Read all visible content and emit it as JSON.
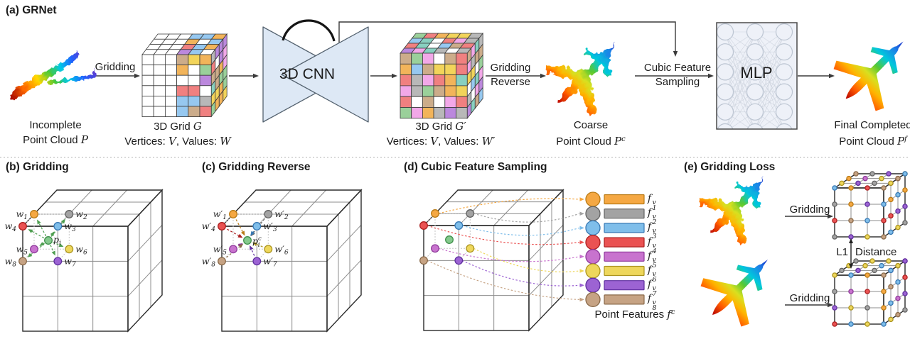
{
  "colors": {
    "text": "#1b1b1b",
    "arrow": "#3a3a3a",
    "divider": "#b5b5b5",
    "cnn_fill": "#dde8f5",
    "cnn_stroke": "#54626f",
    "arc": "#151515",
    "mlp_box_fill": "#eef1f8",
    "mlp_box_stroke": "#4a4a4a",
    "mlp_node_stroke": "#bcc5d2",
    "mlp_link_stroke": "#cfd5df",
    "wire_outer": "#2b2b2b",
    "wire_inner": "#8c8c8c",
    "wire_light": "#c6c6c6",
    "green_arrow": "#4e9e50",
    "cell_stroke": "#3a3a3a",
    "palette": [
      "#f08080",
      "#9ad09a",
      "#b8b8b8",
      "#f2d45a",
      "#bb88dd",
      "#96c8f0",
      "#f2b45a",
      "#f2a8e8",
      "#ccac8a",
      "#ffffff",
      "#88d0c0"
    ],
    "vertex": [
      {
        "fill": "#f5a843",
        "stroke": "#b97a14"
      },
      {
        "fill": "#a3a3a3",
        "stroke": "#636363"
      },
      {
        "fill": "#7fbeea",
        "stroke": "#3879b4"
      },
      {
        "fill": "#ea5252",
        "stroke": "#ab1f1f"
      },
      {
        "fill": "#c873ce",
        "stroke": "#8f3a9b"
      },
      {
        "fill": "#eed75c",
        "stroke": "#ab941f"
      },
      {
        "fill": "#9c63d3",
        "stroke": "#5f2f9e"
      },
      {
        "fill": "#c6a384",
        "stroke": "#8a6a4a"
      }
    ],
    "center_vertex": {
      "fill": "#85c98d",
      "stroke": "#3f8f4a"
    },
    "plane_stops": [
      {
        "o": 0,
        "c": "#1528c8"
      },
      {
        "o": 0.14,
        "c": "#1e7fe8"
      },
      {
        "o": 0.3,
        "c": "#00c8dc"
      },
      {
        "o": 0.45,
        "c": "#58c832"
      },
      {
        "o": 0.58,
        "c": "#d8e020"
      },
      {
        "o": 0.7,
        "c": "#ffb400"
      },
      {
        "o": 0.84,
        "c": "#ff5a00"
      },
      {
        "o": 1,
        "c": "#b40000"
      }
    ],
    "incomplete_stops": [
      {
        "o": 0,
        "c": "#a00000"
      },
      {
        "o": 0.2,
        "c": "#ff6a00"
      },
      {
        "o": 0.4,
        "c": "#ffd800"
      },
      {
        "o": 0.55,
        "c": "#48c838"
      },
      {
        "o": 0.7,
        "c": "#00c8e8"
      },
      {
        "o": 0.85,
        "c": "#1e64ff"
      },
      {
        "o": 1,
        "c": "#5a3cd2"
      }
    ]
  },
  "panel_a": {
    "title": "(a) GRNet",
    "gridding": "Gridding",
    "cnn": "3D CNN",
    "mlp": "MLP",
    "gridding_reverse": {
      "line1": "Gridding",
      "line2": "Reverse"
    },
    "cubic_feature_sampling": {
      "line1": "Cubic Feature",
      "line2": "Sampling"
    },
    "incomplete": [
      [
        {
          "t": "Incomplete"
        }
      ],
      [
        {
          "t": "Point Cloud "
        },
        {
          "m": "P"
        }
      ]
    ],
    "grid_g": [
      [
        {
          "t": "3D Grid "
        },
        {
          "m": "G"
        }
      ],
      [
        {
          "t": "Vertices: "
        },
        {
          "m": "V"
        },
        {
          "t": ", Values: "
        },
        {
          "m": "W"
        }
      ]
    ],
    "grid_g_prime": [
      [
        {
          "t": "3D Grid "
        },
        {
          "m": "G′"
        }
      ],
      [
        {
          "t": "Vertices: "
        },
        {
          "m": "V"
        },
        {
          "t": ", Values: "
        },
        {
          "m": "W′"
        }
      ]
    ],
    "coarse": [
      [
        {
          "t": "Coarse"
        }
      ],
      [
        {
          "t": "Point Cloud "
        },
        {
          "m": "P"
        },
        {
          "sup": "c"
        }
      ]
    ],
    "final": [
      [
        {
          "t": "Final Completed"
        }
      ],
      [
        {
          "t": "Point Cloud "
        },
        {
          "m": "P"
        },
        {
          "sup": "f"
        }
      ]
    ]
  },
  "panel_b": {
    "title": "(b) Gridding",
    "vertices": [
      {
        "base": "w",
        "sub": "1"
      },
      {
        "base": "w",
        "sub": "2"
      },
      {
        "base": "w",
        "sub": "3"
      },
      {
        "base": "w",
        "sub": "4"
      },
      {
        "base": "w",
        "sub": "5"
      },
      {
        "base": "w",
        "sub": "6"
      },
      {
        "base": "w",
        "sub": "7"
      },
      {
        "base": "w",
        "sub": "8"
      }
    ],
    "center": {
      "base": "p",
      "sub": "i"
    }
  },
  "panel_c": {
    "title": "(c) Gridding Reverse",
    "vertices": [
      {
        "base": "w′",
        "sub": "1"
      },
      {
        "base": "w′",
        "sub": "2"
      },
      {
        "base": "w′",
        "sub": "3"
      },
      {
        "base": "w′",
        "sub": "4"
      },
      {
        "base": "w′",
        "sub": "5"
      },
      {
        "base": "w′",
        "sub": "6"
      },
      {
        "base": "w′",
        "sub": "7"
      },
      {
        "base": "w′",
        "sub": "8"
      }
    ],
    "center": {
      "base": "p",
      "sup": "c",
      "sub": "i"
    }
  },
  "panel_d": {
    "title": "(d) Cubic Feature Sampling",
    "features": [
      {
        "label": [
          {
            "m": "f"
          },
          {
            "ss": [
              "v",
              "1"
            ]
          }
        ]
      },
      {
        "label": [
          {
            "m": "f"
          },
          {
            "ss": [
              "v",
              "2"
            ]
          }
        ]
      },
      {
        "label": [
          {
            "m": "f"
          },
          {
            "ss": [
              "v",
              "3"
            ]
          }
        ]
      },
      {
        "label": [
          {
            "m": "f"
          },
          {
            "ss": [
              "v",
              "4"
            ]
          }
        ]
      },
      {
        "label": [
          {
            "m": "f"
          },
          {
            "ss": [
              "v",
              "5"
            ]
          }
        ]
      },
      {
        "label": [
          {
            "m": "f"
          },
          {
            "ss": [
              "v",
              "6"
            ]
          }
        ]
      },
      {
        "label": [
          {
            "m": "f"
          },
          {
            "ss": [
              "v",
              "7"
            ]
          }
        ]
      },
      {
        "label": [
          {
            "m": "f"
          },
          {
            "ss": [
              "v",
              "8"
            ]
          }
        ]
      }
    ],
    "point_features": [
      {
        "t": "Point Features "
      },
      {
        "m": "f"
      },
      {
        "sup": "c"
      }
    ]
  },
  "panel_e": {
    "title": "(e) Gridding Loss",
    "gridding": "Gridding",
    "l1": {
      "left": "L1",
      "right": "Distance"
    }
  }
}
